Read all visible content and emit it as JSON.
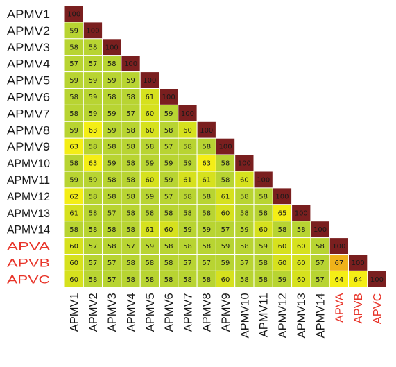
{
  "chart_data": {
    "type": "heatmap",
    "title": "",
    "xlabel": "",
    "ylabel": "",
    "grid": true,
    "legend": "none",
    "labels": [
      "APMV1",
      "APMV2",
      "APMV3",
      "APMV4",
      "APMV5",
      "APMV6",
      "APMV7",
      "APMV8",
      "APMV9",
      "APMV10",
      "APMV11",
      "APMV12",
      "APMV13",
      "APMV14",
      "APVA",
      "APVB",
      "APVC"
    ],
    "label_colors": [
      "#1a1a1a",
      "#1a1a1a",
      "#1a1a1a",
      "#1a1a1a",
      "#1a1a1a",
      "#1a1a1a",
      "#1a1a1a",
      "#1a1a1a",
      "#1a1a1a",
      "#1a1a1a",
      "#1a1a1a",
      "#1a1a1a",
      "#1a1a1a",
      "#1a1a1a",
      "#e8352a",
      "#e8352a",
      "#e8352a"
    ],
    "matrix": [
      [
        100
      ],
      [
        59,
        100
      ],
      [
        58,
        58,
        100
      ],
      [
        57,
        57,
        58,
        100
      ],
      [
        59,
        59,
        59,
        59,
        100
      ],
      [
        58,
        59,
        58,
        58,
        61,
        100
      ],
      [
        58,
        59,
        59,
        57,
        60,
        59,
        100
      ],
      [
        59,
        63,
        59,
        58,
        60,
        58,
        60,
        100
      ],
      [
        63,
        58,
        58,
        58,
        58,
        57,
        58,
        58,
        100
      ],
      [
        58,
        63,
        59,
        58,
        59,
        59,
        59,
        63,
        58,
        100
      ],
      [
        59,
        59,
        58,
        58,
        60,
        59,
        61,
        61,
        58,
        60,
        100
      ],
      [
        62,
        58,
        58,
        58,
        59,
        57,
        58,
        58,
        61,
        58,
        58,
        100
      ],
      [
        61,
        58,
        57,
        58,
        58,
        58,
        58,
        58,
        60,
        58,
        58,
        65,
        100
      ],
      [
        58,
        58,
        58,
        58,
        61,
        60,
        59,
        59,
        57,
        59,
        60,
        58,
        58,
        100
      ],
      [
        60,
        57,
        58,
        57,
        59,
        58,
        58,
        58,
        59,
        58,
        59,
        60,
        60,
        58,
        100
      ],
      [
        60,
        57,
        57,
        58,
        58,
        58,
        57,
        57,
        59,
        57,
        58,
        60,
        60,
        57,
        67,
        100
      ],
      [
        60,
        58,
        57,
        58,
        58,
        58,
        58,
        58,
        60,
        58,
        58,
        59,
        60,
        57,
        64,
        64,
        100
      ]
    ],
    "colors": {
      "diagonal": "#7a1f1f",
      "low": "#b8d432",
      "mid": "#d6e11e",
      "high": "#f4ee16",
      "peak": "#f0b21a",
      "cell_border": "#ffffff"
    }
  }
}
